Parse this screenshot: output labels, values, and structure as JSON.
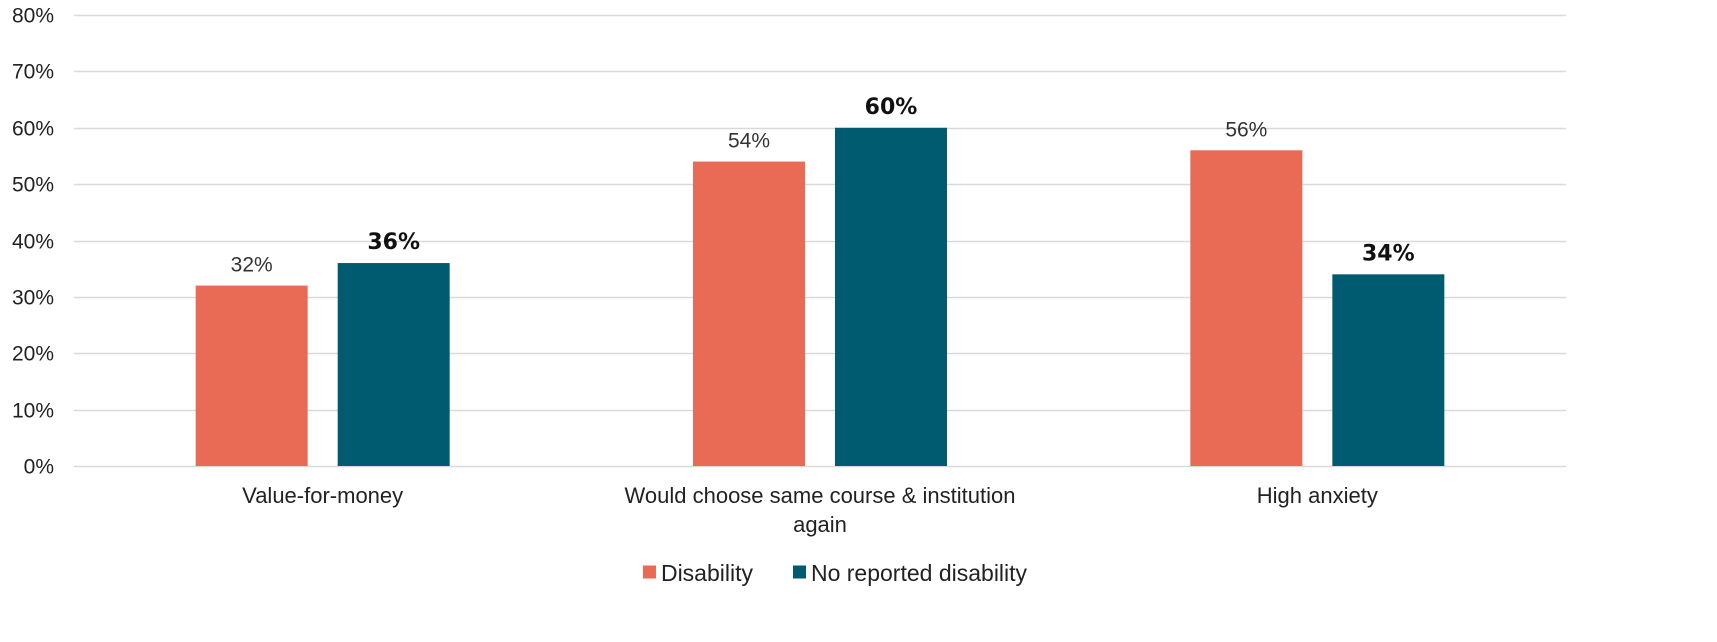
{
  "chart_data": {
    "type": "bar",
    "categories": [
      [
        "Value-for-money"
      ],
      [
        "Would choose same course & institution",
        "again"
      ],
      [
        "High anxiety"
      ]
    ],
    "series": [
      {
        "name": "Disability",
        "color": "#E96A55",
        "values": [
          32,
          54,
          56
        ],
        "labels": [
          "32%",
          "54%",
          "56%"
        ],
        "label_style": "normal"
      },
      {
        "name": "No reported disability",
        "color": "#005A70",
        "values": [
          36,
          60,
          34
        ],
        "labels": [
          "36%",
          "60%",
          "34%"
        ],
        "label_style": "bold"
      }
    ],
    "y_ticks": [
      {
        "value": 0,
        "label": "0%"
      },
      {
        "value": 10,
        "label": "10%"
      },
      {
        "value": 20,
        "label": "20%"
      },
      {
        "value": 30,
        "label": "30%"
      },
      {
        "value": 40,
        "label": "40%"
      },
      {
        "value": 50,
        "label": "50%"
      },
      {
        "value": 60,
        "label": "60%"
      },
      {
        "value": 70,
        "label": "70%"
      },
      {
        "value": 80,
        "label": "80%"
      }
    ],
    "ylim": [
      0,
      80
    ],
    "grid": true,
    "grid_color": "#D9D9D9",
    "legend_position": "bottom-center",
    "title": "",
    "xlabel": "",
    "ylabel": ""
  }
}
